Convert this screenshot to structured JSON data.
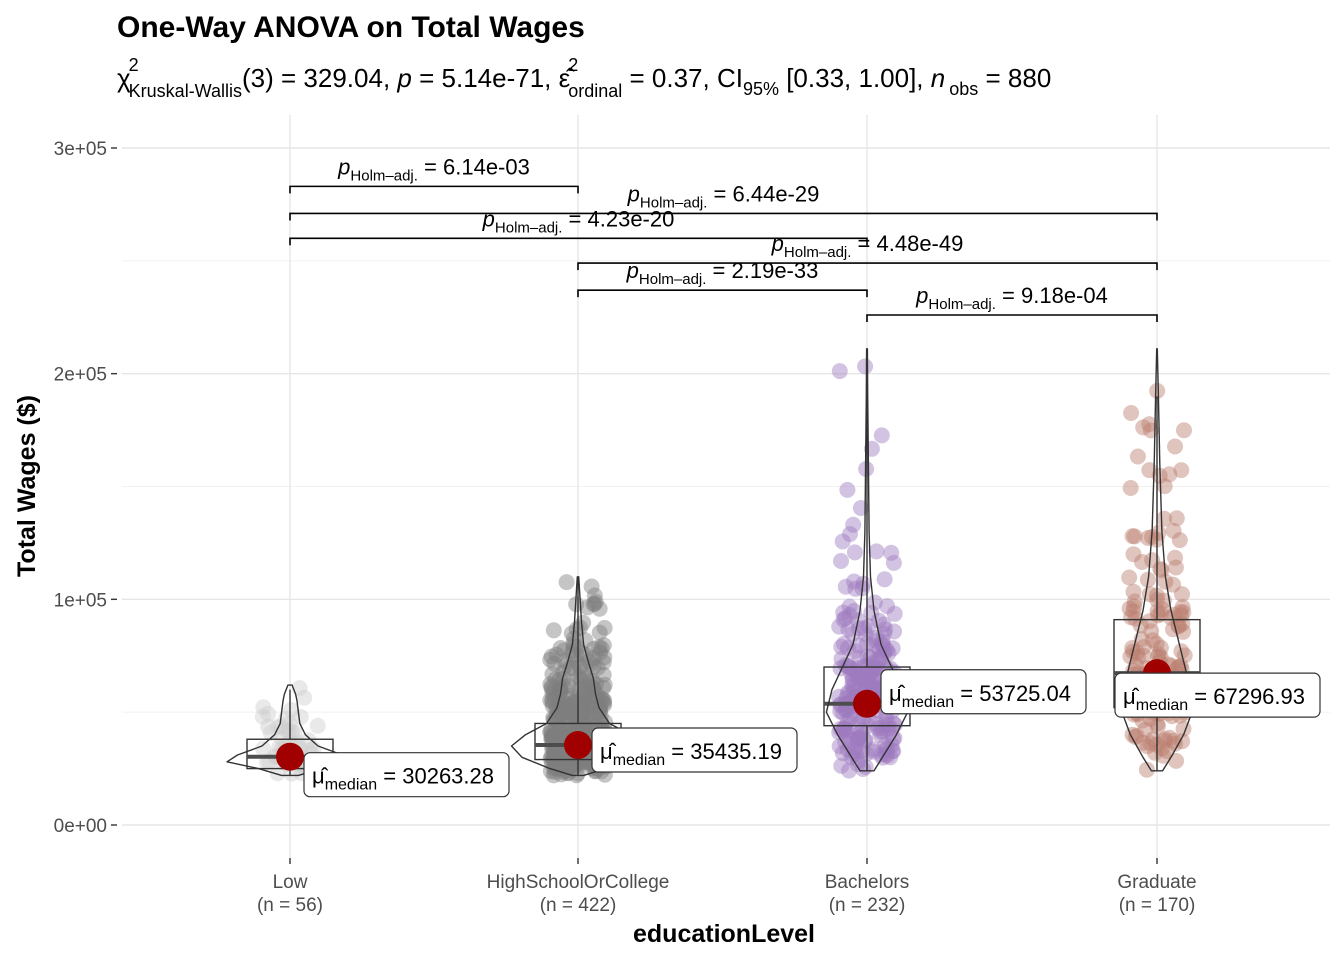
{
  "chart_data": {
    "type": "scatter",
    "title": "One-Way ANOVA on Total Wages",
    "subtitle": {
      "chi": "χ",
      "chi_sup": "2",
      "chi_sub": "Kruskal-Wallis",
      "df_stat": "(3) = 329.04, ",
      "p_sym": "p",
      "p_val": " = 5.14e-71, ",
      "eps": "ε̂",
      "eps_sup": "2",
      "eps_sub": "ordinal",
      "eps_val": " = 0.37, CI",
      "ci_sub": "95%",
      "ci_val": " [0.33, 1.00], ",
      "n_sym": "n",
      "n_sub": "obs",
      "n_val": " = 880"
    },
    "xlabel": "educationLevel",
    "ylabel": "Total Wages ($)",
    "ylim": [
      -15000,
      310000
    ],
    "y_ticks": [
      {
        "value": 0,
        "label": "0e+00"
      },
      {
        "value": 100000,
        "label": "1e+05"
      },
      {
        "value": 200000,
        "label": "2e+05"
      },
      {
        "value": 300000,
        "label": "3e+05"
      }
    ],
    "grid": true,
    "groups": [
      {
        "name": "Low",
        "n_label": "(n = 56)",
        "color": "#cfcfcf",
        "n": 56,
        "median": 30263.28,
        "median_text": "30263.28",
        "box": {
          "q1": 25000,
          "q3": 38000,
          "whisker_low": 22000,
          "whisker_high": 60000
        },
        "range": [
          22000,
          62000
        ],
        "violin": [
          [
            22000,
            0.12
          ],
          [
            25000,
            0.45
          ],
          [
            28000,
            0.9
          ],
          [
            31000,
            0.75
          ],
          [
            35000,
            0.4
          ],
          [
            40000,
            0.22
          ],
          [
            45000,
            0.14
          ],
          [
            50000,
            0.12
          ],
          [
            55000,
            0.1
          ],
          [
            58000,
            0.08
          ],
          [
            62000,
            0.03
          ]
        ]
      },
      {
        "name": "HighSchoolOrCollege",
        "n_label": "(n = 422)",
        "color": "#7f7f7f",
        "n": 422,
        "median": 35435.19,
        "median_text": "35435.19",
        "box": {
          "q1": 29000,
          "q3": 45000,
          "whisker_low": 22000,
          "whisker_high": 110000
        },
        "range": [
          22000,
          110000
        ],
        "violin": [
          [
            22000,
            0.08
          ],
          [
            25000,
            0.4
          ],
          [
            30000,
            0.8
          ],
          [
            35000,
            0.95
          ],
          [
            40000,
            0.75
          ],
          [
            45000,
            0.45
          ],
          [
            52000,
            0.3
          ],
          [
            58000,
            0.25
          ],
          [
            65000,
            0.22
          ],
          [
            72000,
            0.15
          ],
          [
            80000,
            0.08
          ],
          [
            90000,
            0.05
          ],
          [
            100000,
            0.03
          ],
          [
            110000,
            0.01
          ]
        ]
      },
      {
        "name": "Bachelors",
        "n_label": "(n = 232)",
        "color": "#9e7bbf",
        "n": 232,
        "median": 53725.04,
        "median_text": "53725.04",
        "box": {
          "q1": 44000,
          "q3": 70000,
          "whisker_low": 24000,
          "whisker_high": 210000
        },
        "range": [
          24000,
          211000
        ],
        "violin": [
          [
            24000,
            0.1
          ],
          [
            30000,
            0.22
          ],
          [
            40000,
            0.42
          ],
          [
            50000,
            0.58
          ],
          [
            60000,
            0.5
          ],
          [
            70000,
            0.35
          ],
          [
            80000,
            0.2
          ],
          [
            95000,
            0.1
          ],
          [
            110000,
            0.05
          ],
          [
            130000,
            0.03
          ],
          [
            160000,
            0.02
          ],
          [
            190000,
            0.01
          ],
          [
            211000,
            0.005
          ]
        ]
      },
      {
        "name": "Graduate",
        "n_label": "(n = 170)",
        "color": "#bb7e6e",
        "n": 170,
        "median": 67296.93,
        "median_text": "67296.93",
        "box": {
          "q1": 52000,
          "q3": 91000,
          "whisker_low": 24000,
          "whisker_high": 190000
        },
        "range": [
          24000,
          211000
        ],
        "violin": [
          [
            24000,
            0.08
          ],
          [
            30000,
            0.2
          ],
          [
            40000,
            0.38
          ],
          [
            50000,
            0.5
          ],
          [
            60000,
            0.48
          ],
          [
            70000,
            0.4
          ],
          [
            80000,
            0.32
          ],
          [
            95000,
            0.2
          ],
          [
            110000,
            0.12
          ],
          [
            130000,
            0.07
          ],
          [
            160000,
            0.04
          ],
          [
            190000,
            0.02
          ],
          [
            211000,
            0.005
          ]
        ]
      }
    ],
    "comparisons": [
      {
        "from": 0,
        "to": 1,
        "y": 283000,
        "p_text": " = 6.14e-03"
      },
      {
        "from": 0,
        "to": 3,
        "y": 271000,
        "p_text": " = 6.44e-29"
      },
      {
        "from": 0,
        "to": 2,
        "y": 260000,
        "p_text": " = 4.23e-20"
      },
      {
        "from": 1,
        "to": 3,
        "y": 249000,
        "p_text": " = 4.48e-49"
      },
      {
        "from": 1,
        "to": 2,
        "y": 237000,
        "p_text": " = 2.19e-33"
      },
      {
        "from": 2,
        "to": 3,
        "y": 226000,
        "p_text": " = 9.18e-04"
      }
    ],
    "p_symbol": "p",
    "p_sub": "Holm–adj.",
    "mu_symbol": "μ̂",
    "mu_sub": "median",
    "mu_eq": " = "
  }
}
